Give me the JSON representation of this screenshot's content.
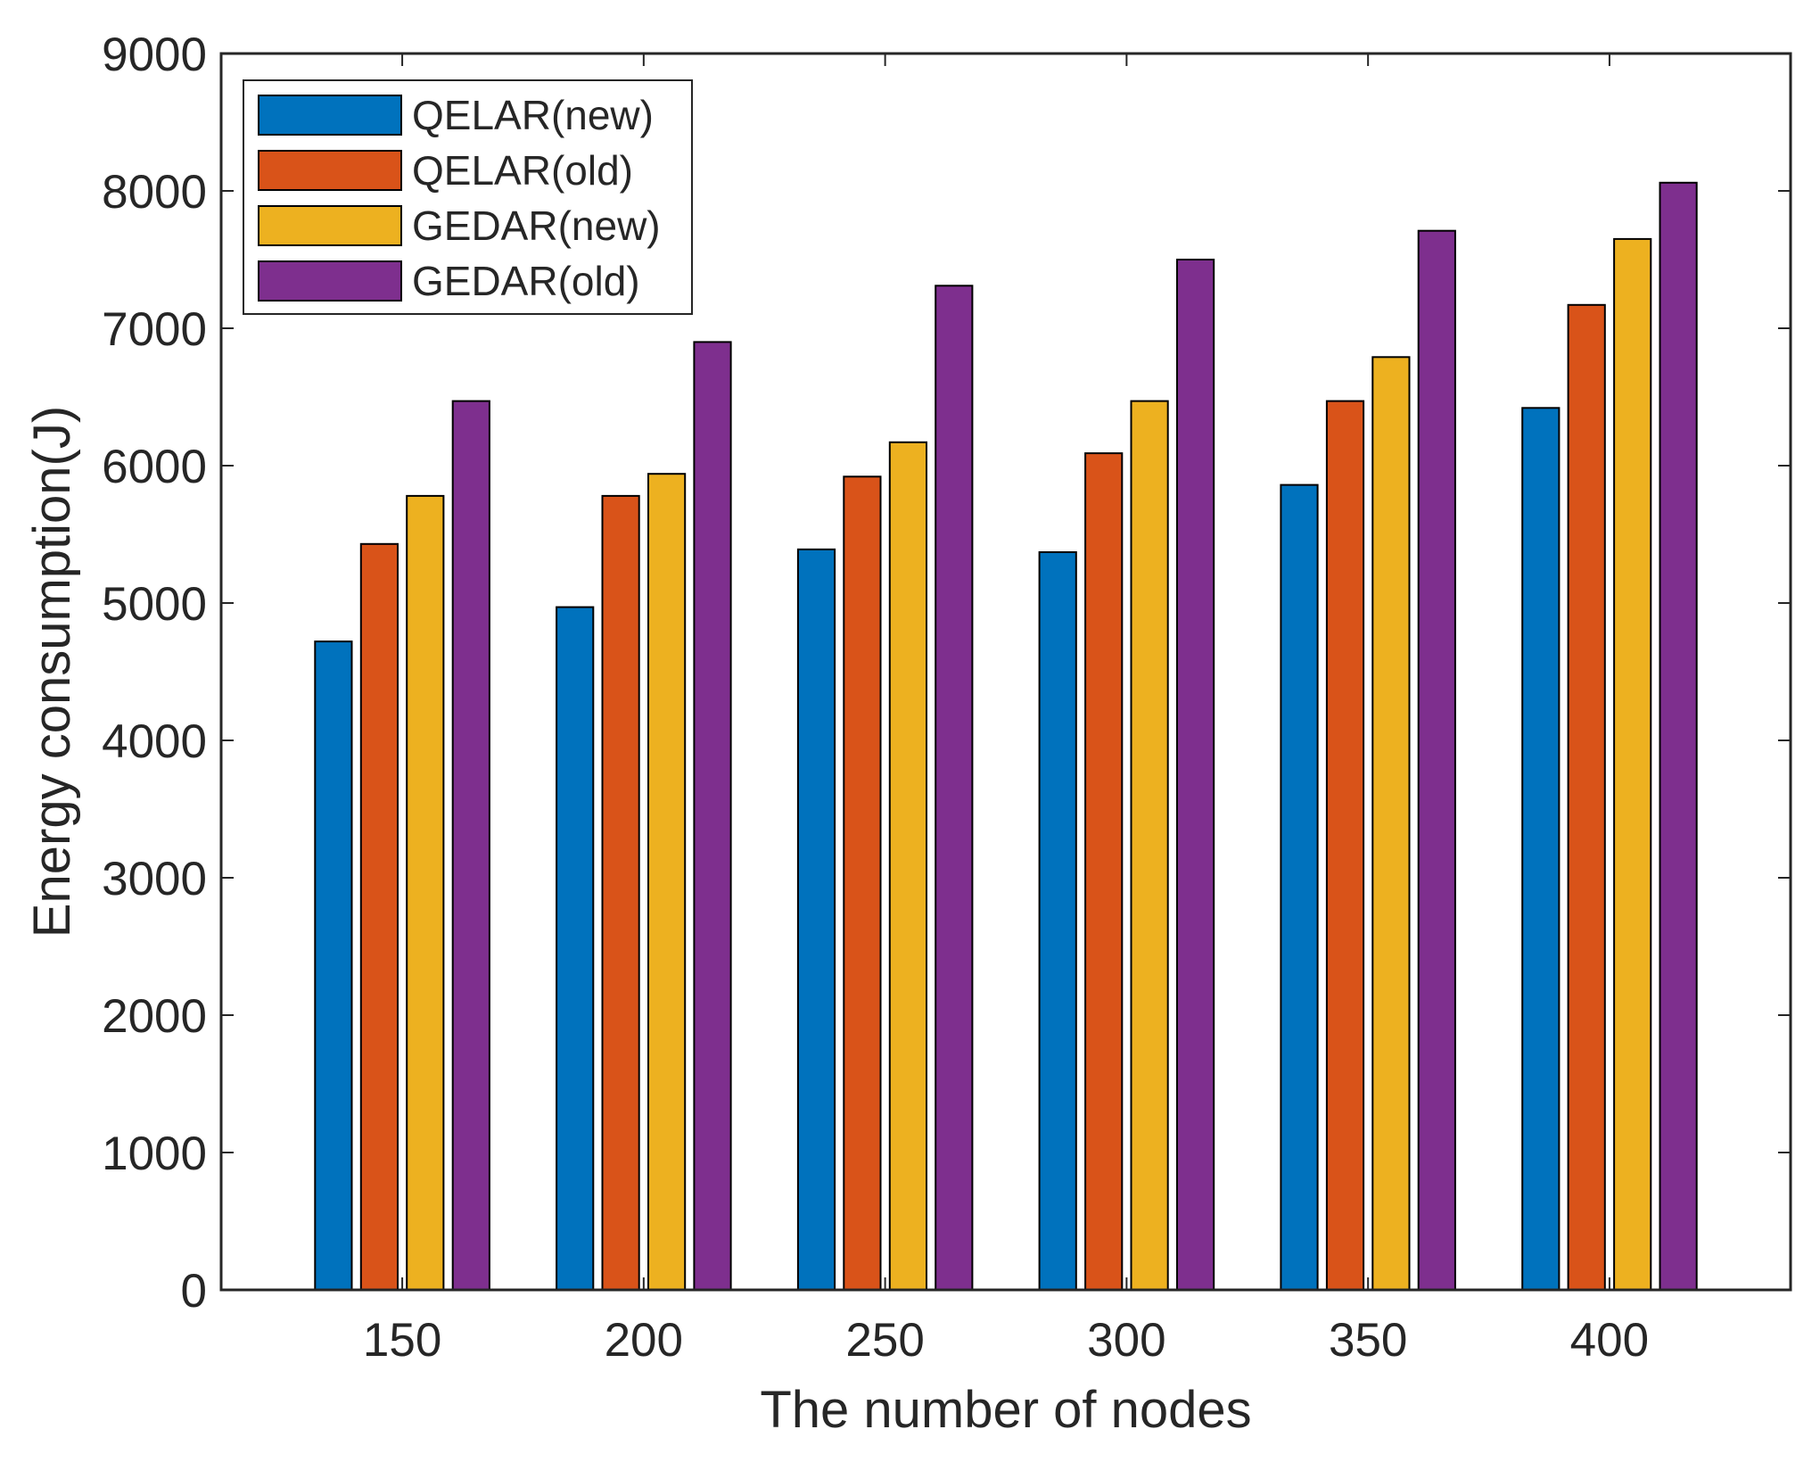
{
  "chart_data": {
    "type": "bar",
    "title": "",
    "xlabel": "The number of nodes",
    "ylabel": "Energy consumption(J)",
    "categories": [
      "150",
      "200",
      "250",
      "300",
      "350",
      "400"
    ],
    "ylim": [
      0,
      9000
    ],
    "yticks": [
      0,
      1000,
      2000,
      3000,
      4000,
      5000,
      6000,
      7000,
      8000,
      9000
    ],
    "grid": false,
    "legend_position": "top-left",
    "series": [
      {
        "name": "QELAR(new)",
        "color": "#0072BD",
        "values": [
          4720,
          4970,
          5390,
          5370,
          5860,
          6420
        ]
      },
      {
        "name": "QELAR(old)",
        "color": "#D95319",
        "values": [
          5430,
          5780,
          5920,
          6090,
          6470,
          7170
        ]
      },
      {
        "name": "GEDAR(new)",
        "color": "#EDB120",
        "values": [
          5780,
          5940,
          6170,
          6470,
          6790,
          7650
        ]
      },
      {
        "name": "GEDAR(old)",
        "color": "#7E2F8E",
        "values": [
          6470,
          6900,
          7310,
          7500,
          7710,
          8060
        ]
      }
    ]
  }
}
